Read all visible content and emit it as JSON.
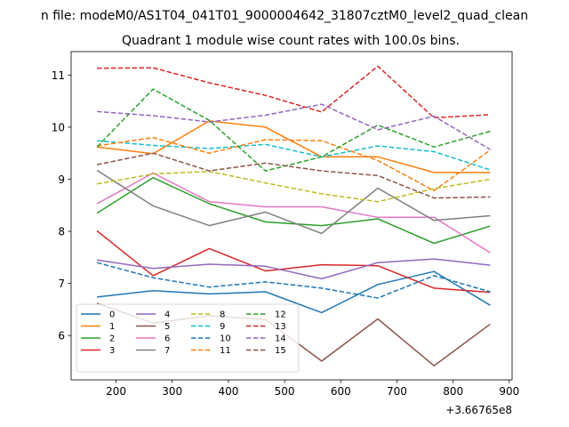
{
  "chart_data": {
    "type": "line",
    "suptitle": "n file: modeM0/AS1T04_041T01_9000004642_31807cztM0_level2_quad_clean",
    "title": "Quadrant 1 module wise count rates with 100.0s bins.",
    "xlabel": "",
    "ylabel": "",
    "offset_label": "+3.66765e8",
    "x_offset": 366765000,
    "x": [
      166,
      266,
      366,
      466,
      566,
      666,
      766,
      866
    ],
    "xlim": [
      120,
      905
    ],
    "ylim": [
      5.15,
      11.45
    ],
    "x_ticks": [
      200,
      300,
      400,
      500,
      600,
      700,
      800,
      900
    ],
    "x_tick_labels": [
      "200",
      "300",
      "400",
      "500",
      "600",
      "700",
      "800",
      "900"
    ],
    "y_ticks": [
      6,
      7,
      8,
      9,
      10,
      11
    ],
    "y_tick_labels": [
      "6",
      "7",
      "8",
      "9",
      "10",
      "11"
    ],
    "grid": false,
    "legend_position": "lower-left",
    "legend_columns": 4,
    "series": [
      {
        "name": "0",
        "color": "#1f77b4",
        "dashed": false,
        "values": [
          6.74,
          6.86,
          6.8,
          6.84,
          6.44,
          6.98,
          7.23,
          6.58
        ]
      },
      {
        "name": "1",
        "color": "#ff7f0e",
        "dashed": false,
        "values": [
          9.62,
          9.49,
          10.12,
          10.0,
          9.43,
          9.43,
          9.13,
          9.13
        ]
      },
      {
        "name": "2",
        "color": "#2ca02c",
        "dashed": false,
        "values": [
          8.35,
          9.03,
          8.53,
          8.18,
          8.11,
          8.24,
          7.77,
          8.1
        ]
      },
      {
        "name": "3",
        "color": "#d62728",
        "dashed": false,
        "values": [
          8.01,
          7.15,
          7.67,
          7.24,
          7.36,
          7.34,
          6.91,
          6.83
        ]
      },
      {
        "name": "4",
        "color": "#9467bd",
        "dashed": false,
        "values": [
          7.45,
          7.29,
          7.37,
          7.33,
          7.09,
          7.4,
          7.47,
          7.35
        ]
      },
      {
        "name": "5",
        "color": "#8c564b",
        "dashed": false,
        "values": [
          6.62,
          6.24,
          6.38,
          6.31,
          5.51,
          6.32,
          5.42,
          6.22
        ]
      },
      {
        "name": "6",
        "color": "#e377c2",
        "dashed": false,
        "values": [
          8.53,
          9.12,
          8.57,
          8.47,
          8.47,
          8.27,
          8.27,
          7.59
        ]
      },
      {
        "name": "7",
        "color": "#7f7f7f",
        "dashed": false,
        "values": [
          9.17,
          8.49,
          8.11,
          8.37,
          7.96,
          8.83,
          8.21,
          8.3
        ]
      },
      {
        "name": "8",
        "color": "#bcbd22",
        "dashed": true,
        "values": [
          8.91,
          9.1,
          9.15,
          8.93,
          8.72,
          8.57,
          8.82,
          9.0
        ]
      },
      {
        "name": "9",
        "color": "#17becf",
        "dashed": true,
        "values": [
          9.74,
          9.65,
          9.59,
          9.67,
          9.43,
          9.64,
          9.53,
          9.18
        ]
      },
      {
        "name": "10",
        "color": "#1f77b4",
        "dashed": true,
        "values": [
          7.4,
          7.11,
          6.93,
          7.03,
          6.91,
          6.72,
          7.15,
          6.84
        ]
      },
      {
        "name": "11",
        "color": "#ff7f0e",
        "dashed": true,
        "values": [
          9.64,
          9.8,
          9.5,
          9.76,
          9.74,
          9.36,
          8.78,
          9.56
        ]
      },
      {
        "name": "12",
        "color": "#2ca02c",
        "dashed": true,
        "values": [
          9.62,
          10.73,
          10.13,
          9.16,
          9.43,
          10.04,
          9.62,
          9.92
        ]
      },
      {
        "name": "13",
        "color": "#d62728",
        "dashed": true,
        "values": [
          11.13,
          11.14,
          10.85,
          10.61,
          10.29,
          11.17,
          10.18,
          10.24
        ]
      },
      {
        "name": "14",
        "color": "#9467bd",
        "dashed": true,
        "values": [
          10.3,
          10.22,
          10.1,
          10.23,
          10.44,
          9.95,
          10.21,
          9.57
        ]
      },
      {
        "name": "15",
        "color": "#8c564b",
        "dashed": true,
        "values": [
          9.28,
          9.5,
          9.16,
          9.31,
          9.16,
          9.07,
          8.64,
          8.66
        ]
      }
    ]
  }
}
